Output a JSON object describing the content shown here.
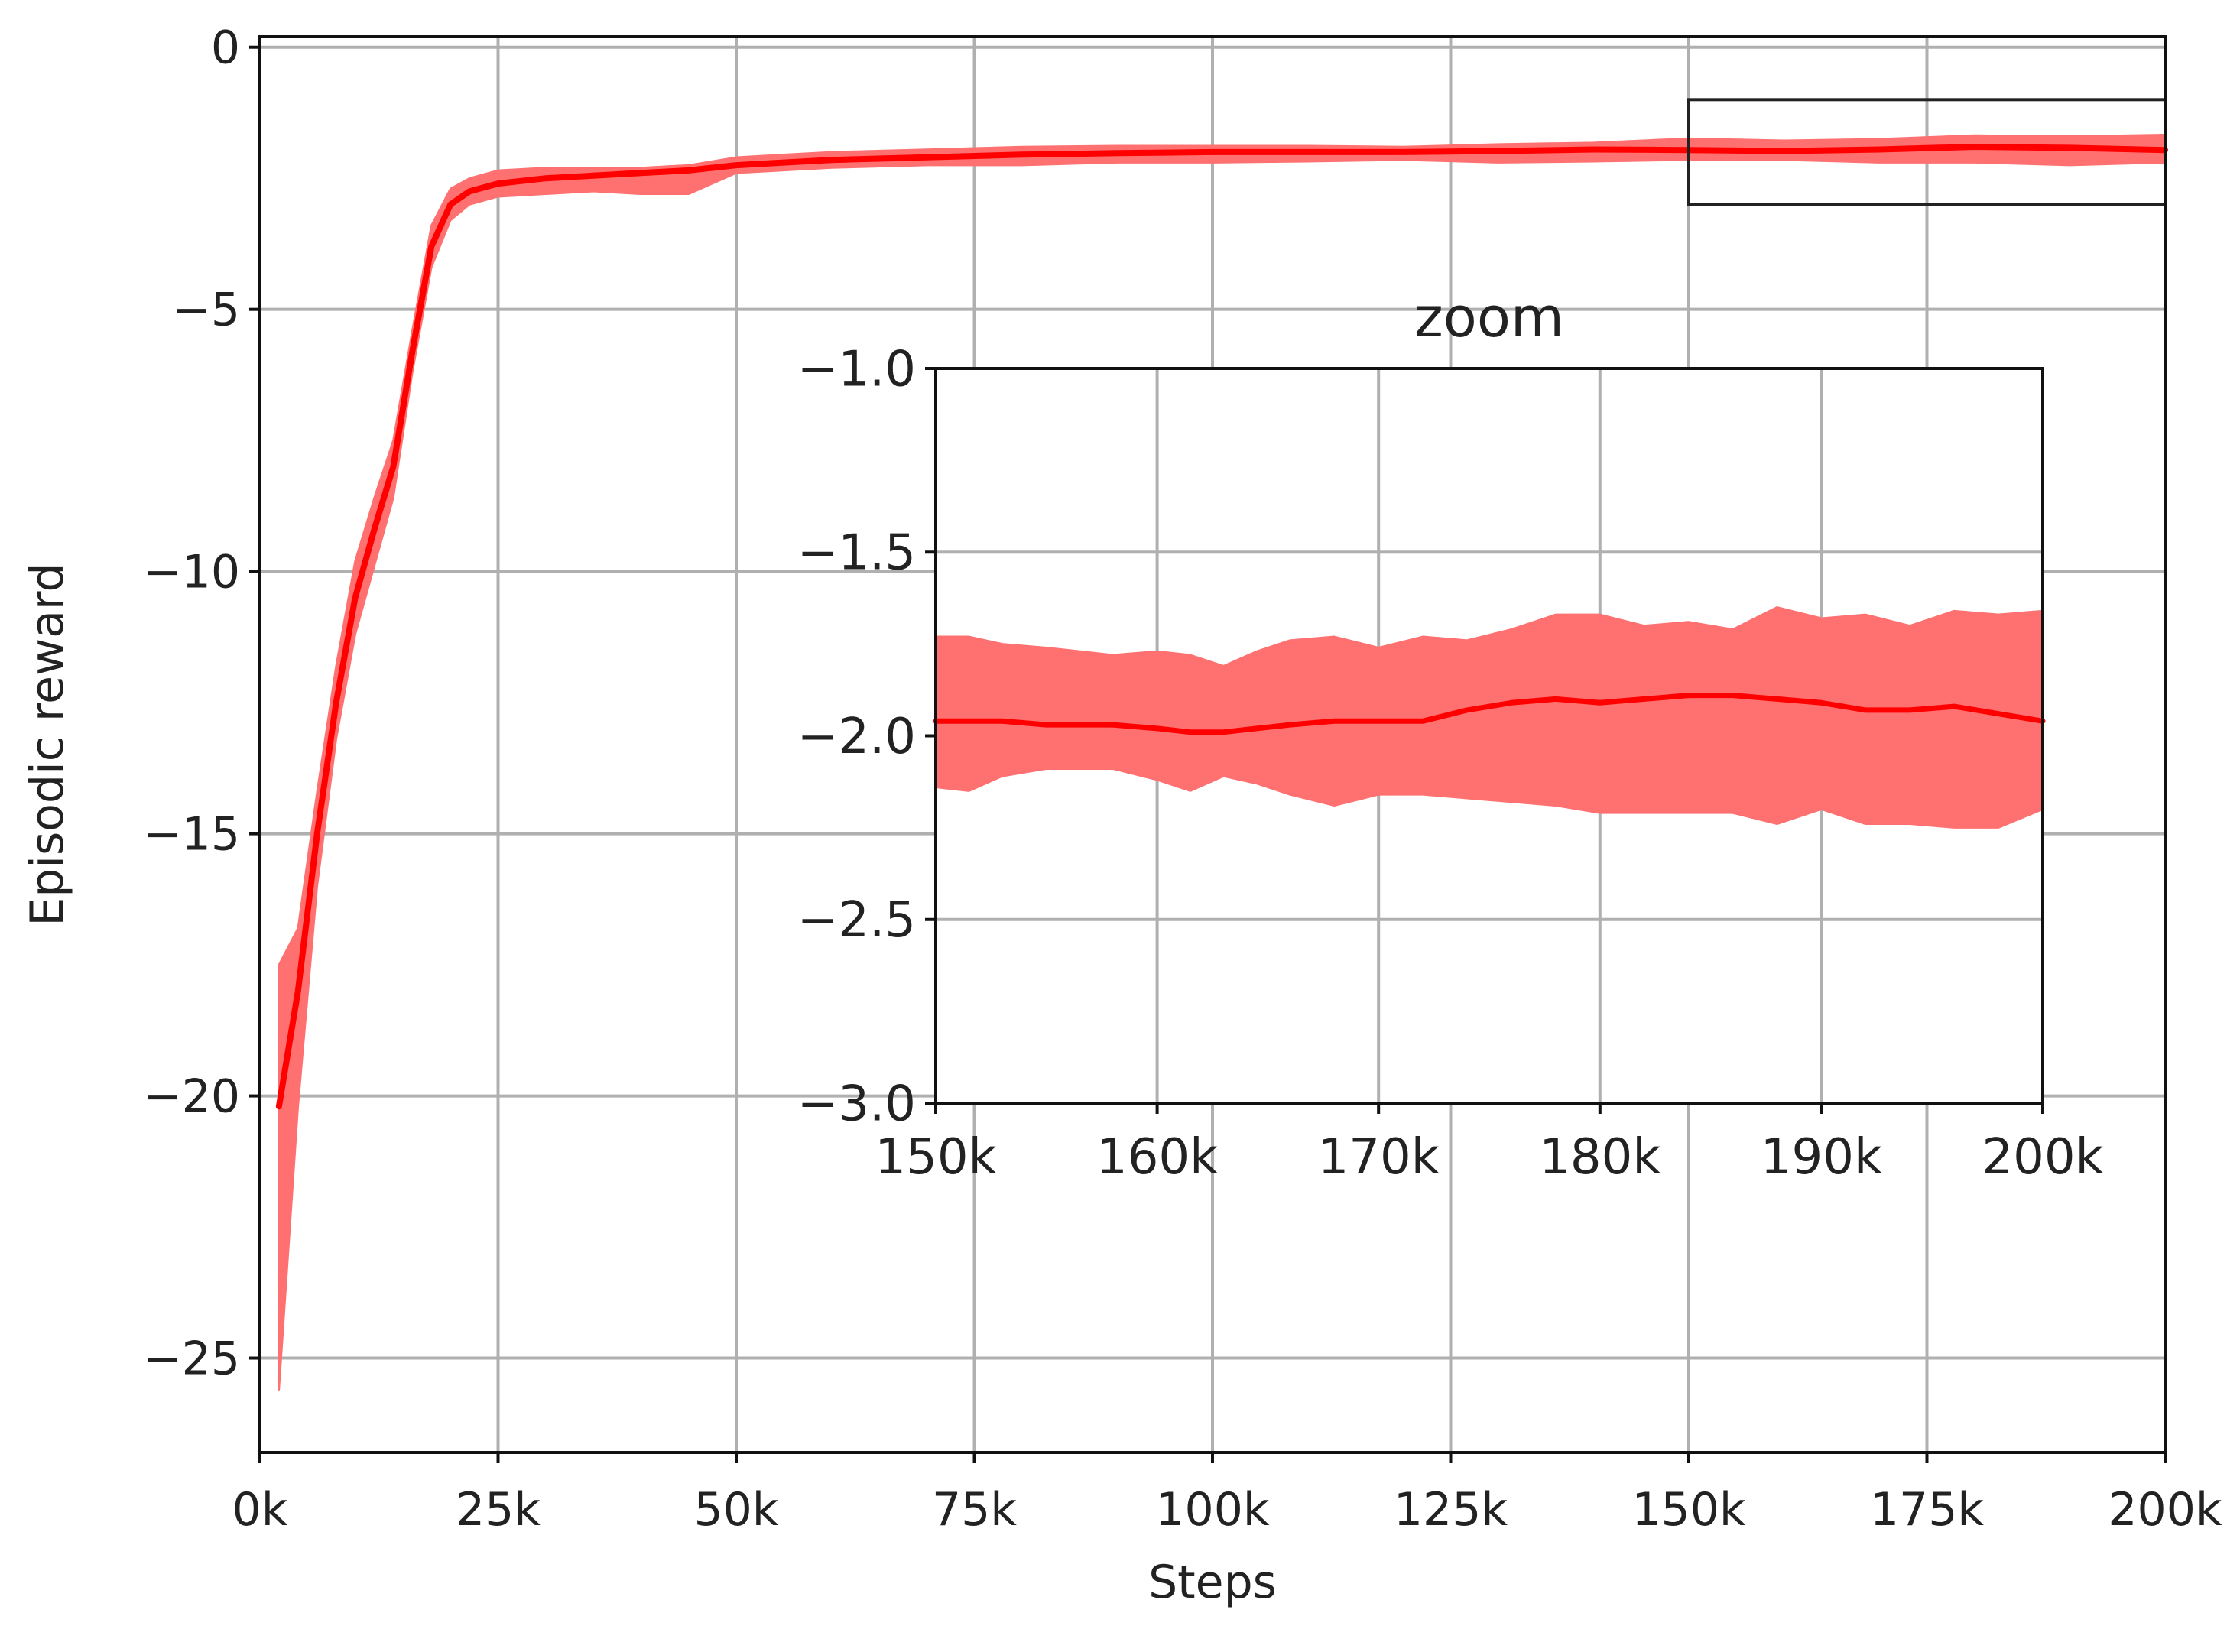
{
  "chart_data": [
    {
      "type": "line",
      "panel": "main",
      "xlabel": "Steps",
      "ylabel": "Episodic reward",
      "xlim": [
        0,
        200000
      ],
      "ylim": [
        -26.8,
        0.2
      ],
      "xticks": [
        0,
        25000,
        50000,
        75000,
        100000,
        125000,
        150000,
        175000,
        200000
      ],
      "xtick_labels": [
        "0k",
        "25k",
        "50k",
        "75k",
        "100k",
        "125k",
        "150k",
        "175k",
        "200k"
      ],
      "yticks": [
        0,
        -5,
        -10,
        -15,
        -20,
        -25
      ],
      "ytick_labels": [
        "0",
        "−5",
        "−10",
        "−15",
        "−20",
        "−25"
      ],
      "grid": true,
      "color": "#ff0000",
      "fill_color": "#ff7070",
      "series": [
        {
          "x": [
            2000,
            4000,
            6000,
            8000,
            10000,
            12000,
            14000,
            16000,
            18000,
            20000,
            22000,
            25000,
            30000,
            35000,
            40000,
            45000,
            50000,
            55000,
            60000,
            70000,
            80000,
            90000,
            100000,
            110000,
            120000,
            130000,
            140000,
            150000,
            160000,
            170000,
            180000,
            190000,
            200000
          ],
          "mean": [
            -20.2,
            -18.0,
            -15.0,
            -12.5,
            -10.5,
            -9.2,
            -8.0,
            -5.8,
            -3.8,
            -3.0,
            -2.75,
            -2.6,
            -2.5,
            -2.45,
            -2.4,
            -2.35,
            -2.25,
            -2.2,
            -2.15,
            -2.1,
            -2.05,
            -2.02,
            -2.0,
            -2.0,
            -2.0,
            -1.98,
            -1.95,
            -1.96,
            -1.98,
            -1.95,
            -1.9,
            -1.92,
            -1.96
          ],
          "upper": [
            -17.5,
            -16.8,
            -14.2,
            -11.8,
            -9.8,
            -8.6,
            -7.5,
            -5.4,
            -3.4,
            -2.7,
            -2.5,
            -2.35,
            -2.3,
            -2.3,
            -2.3,
            -2.25,
            -2.1,
            -2.05,
            -2.0,
            -1.95,
            -1.9,
            -1.88,
            -1.88,
            -1.88,
            -1.9,
            -1.85,
            -1.82,
            -1.74,
            -1.78,
            -1.75,
            -1.68,
            -1.7,
            -1.67
          ],
          "lower": [
            -25.6,
            -20.2,
            -16.0,
            -13.2,
            -11.2,
            -9.9,
            -8.6,
            -6.2,
            -4.2,
            -3.3,
            -3.0,
            -2.85,
            -2.8,
            -2.75,
            -2.8,
            -2.8,
            -2.4,
            -2.35,
            -2.3,
            -2.25,
            -2.25,
            -2.2,
            -2.2,
            -2.18,
            -2.15,
            -2.2,
            -2.18,
            -2.15,
            -2.15,
            -2.2,
            -2.2,
            -2.25,
            -2.2
          ]
        }
      ],
      "zoom_box": {
        "x": [
          150000,
          200000
        ],
        "y": [
          -3.0,
          -1.0
        ]
      }
    },
    {
      "type": "line",
      "panel": "inset",
      "title": "zoom",
      "xlim": [
        150000,
        200000
      ],
      "ylim": [
        -3.0,
        -1.0
      ],
      "xticks": [
        150000,
        160000,
        170000,
        180000,
        190000,
        200000
      ],
      "xtick_labels": [
        "150k",
        "160k",
        "170k",
        "180k",
        "190k",
        "200k"
      ],
      "yticks": [
        -1.0,
        -1.5,
        -2.0,
        -2.5,
        -3.0
      ],
      "ytick_labels": [
        "−1.0",
        "−1.5",
        "−2.0",
        "−2.5",
        "−3.0"
      ],
      "grid": true,
      "color": "#ff0000",
      "fill_color": "#ff7070",
      "series": [
        {
          "x": [
            150000,
            151500,
            153000,
            155000,
            158000,
            160000,
            161500,
            163000,
            164500,
            166000,
            168000,
            170000,
            172000,
            174000,
            176000,
            178000,
            180000,
            182000,
            184000,
            186000,
            188000,
            190000,
            192000,
            194000,
            196000,
            198000,
            200000
          ],
          "mean": [
            -1.96,
            -1.96,
            -1.96,
            -1.97,
            -1.97,
            -1.98,
            -1.99,
            -1.99,
            -1.98,
            -1.97,
            -1.96,
            -1.96,
            -1.96,
            -1.93,
            -1.91,
            -1.9,
            -1.91,
            -1.9,
            -1.89,
            -1.89,
            -1.9,
            -1.91,
            -1.93,
            -1.93,
            -1.92,
            -1.94,
            -1.96
          ],
          "upper": [
            -1.73,
            -1.73,
            -1.75,
            -1.76,
            -1.78,
            -1.77,
            -1.78,
            -1.81,
            -1.77,
            -1.74,
            -1.73,
            -1.76,
            -1.73,
            -1.74,
            -1.71,
            -1.67,
            -1.67,
            -1.7,
            -1.69,
            -1.71,
            -1.65,
            -1.68,
            -1.67,
            -1.7,
            -1.66,
            -1.67,
            -1.66
          ],
          "lower": [
            -2.14,
            -2.15,
            -2.11,
            -2.09,
            -2.09,
            -2.12,
            -2.15,
            -2.11,
            -2.13,
            -2.16,
            -2.19,
            -2.16,
            -2.16,
            -2.17,
            -2.18,
            -2.19,
            -2.21,
            -2.21,
            -2.21,
            -2.21,
            -2.24,
            -2.2,
            -2.24,
            -2.24,
            -2.25,
            -2.25,
            -2.2
          ]
        }
      ]
    }
  ]
}
